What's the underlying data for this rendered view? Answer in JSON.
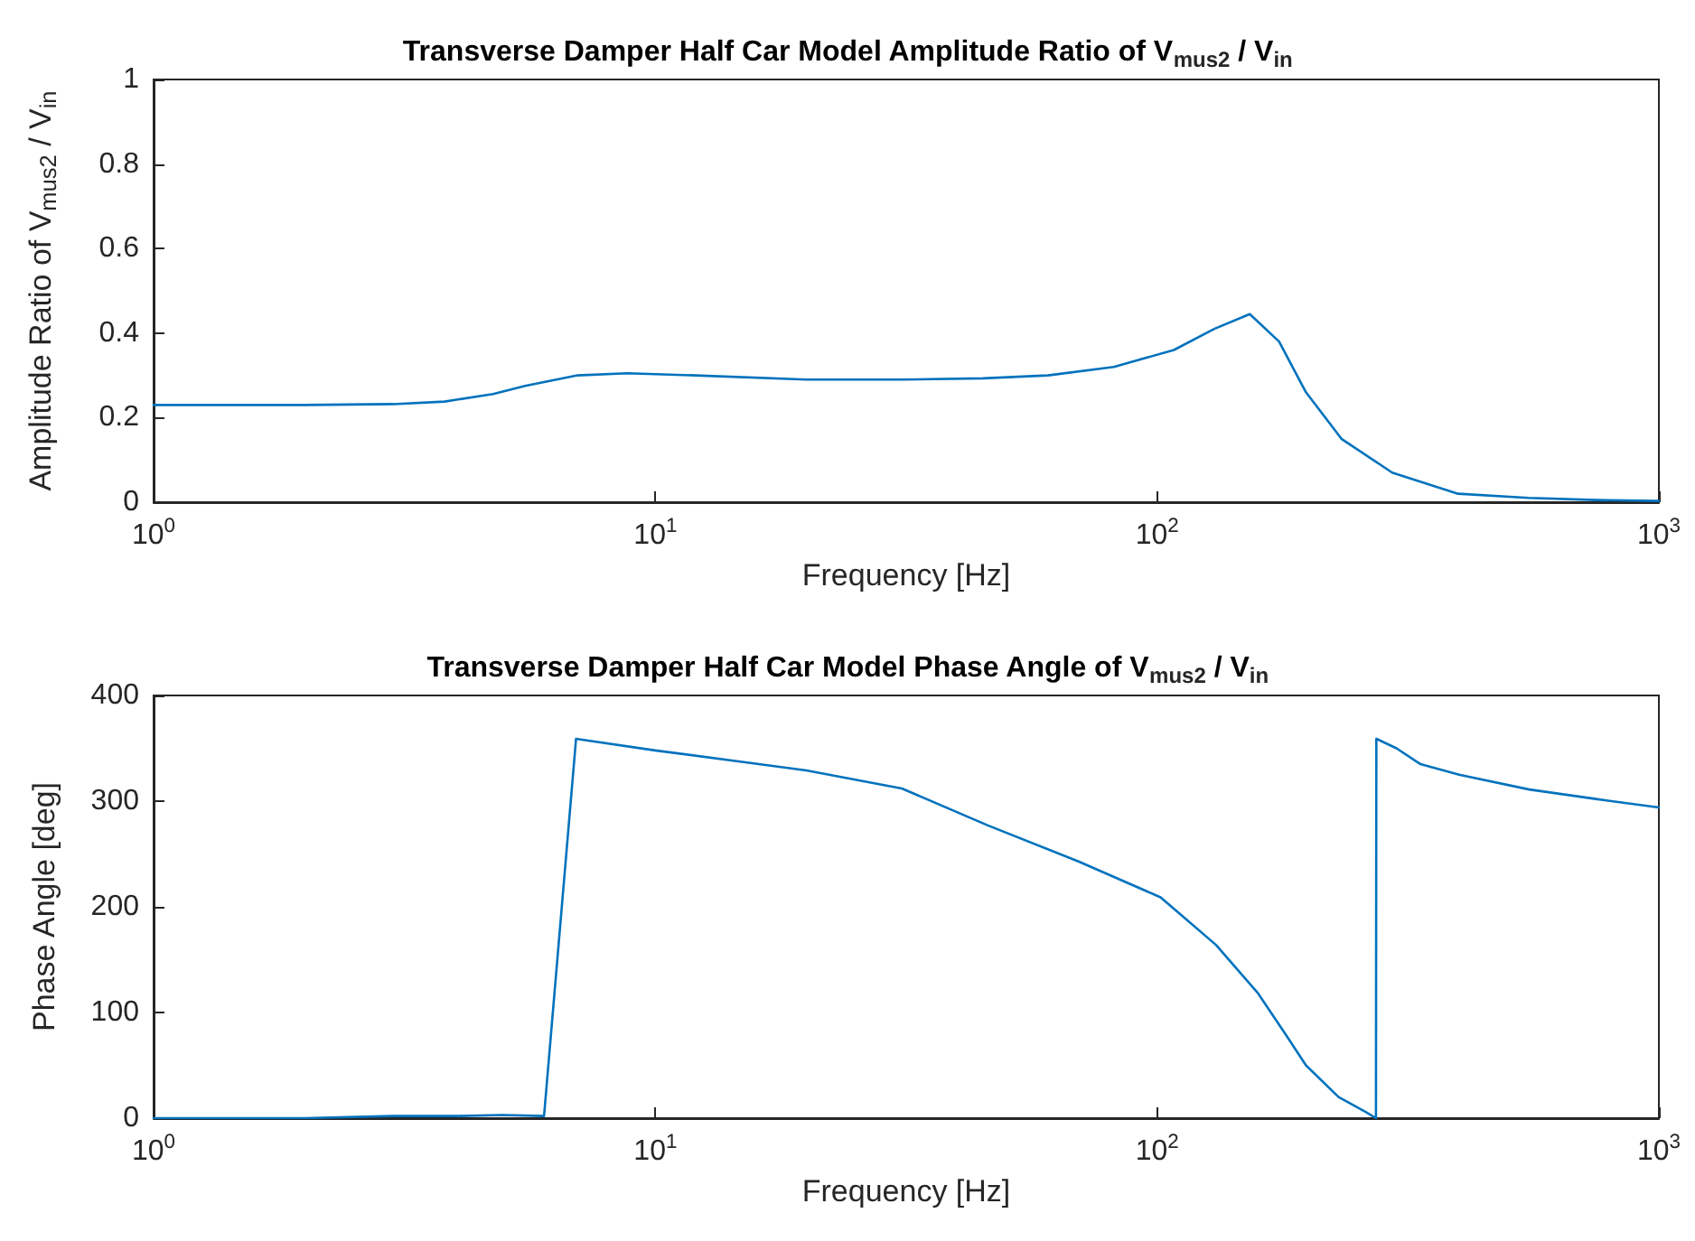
{
  "chart_data": [
    {
      "type": "line",
      "title": "Transverse Damper Half Car Model Amplitude Ratio of V$_{mus2}$ / V$_{in}$",
      "xlabel": "Frequency [Hz]",
      "ylabel": "Amplitude Ratio of V$_{mus2}$ / V$_{in}$",
      "log": "x",
      "grid": false,
      "marker": "none",
      "line_style": "solid",
      "xlim": [
        1,
        1000
      ],
      "xticks": [
        {
          "value": 1,
          "label": "10$^{0}$"
        },
        {
          "value": 10,
          "label": "10$^{1}$"
        },
        {
          "value": 100,
          "label": "10$^{2}$"
        },
        {
          "value": 1000,
          "label": "10$^{3}$"
        }
      ],
      "ylim": [
        0,
        1
      ],
      "yticks": [
        0,
        0.2,
        0.4,
        0.6,
        0.8,
        1
      ],
      "series": [
        {
          "color": "#0072bd",
          "x": [
            1,
            2,
            3,
            3.8,
            4.75,
            5.5,
            7,
            8.8,
            12,
            20,
            31,
            45,
            60.6,
            82,
            108,
            130,
            153,
            175,
            198,
            233,
            294,
            398,
            550,
            750,
            1000
          ],
          "values": [
            0.23,
            0.23,
            0.232,
            0.238,
            0.256,
            0.275,
            0.3,
            0.305,
            0.3,
            0.29,
            0.29,
            0.293,
            0.3,
            0.32,
            0.36,
            0.41,
            0.445,
            0.38,
            0.26,
            0.15,
            0.07,
            0.02,
            0.01,
            0.005,
            0.003
          ]
        }
      ]
    },
    {
      "type": "line",
      "title": "Transverse Damper Half Car Model Phase Angle of V$_{mus2}$ / V$_{in}$",
      "xlabel": "Frequency [Hz]",
      "ylabel": "Phase Angle [deg]",
      "log": "x",
      "grid": false,
      "marker": "none",
      "line_style": "solid",
      "xlim": [
        1,
        1000
      ],
      "xticks": [
        {
          "value": 1,
          "label": "10$^{0}$"
        },
        {
          "value": 10,
          "label": "10$^{1}$"
        },
        {
          "value": 100,
          "label": "10$^{2}$"
        },
        {
          "value": 1000,
          "label": "10$^{3}$"
        }
      ],
      "ylim": [
        0,
        400
      ],
      "yticks": [
        0,
        100,
        200,
        300,
        400
      ],
      "series": [
        {
          "color": "#0072bd",
          "x": [
            1,
            2,
            3,
            4,
            4.95,
            6,
            6.95,
            10,
            15,
            20,
            31,
            46,
            69.7,
            101.6,
            131,
            159,
            180,
            198,
            230,
            260,
            273,
            273.5,
            300,
            335,
            400,
            552,
            750,
            1000
          ],
          "values": [
            0,
            0,
            2,
            2,
            3,
            2,
            359,
            348,
            337,
            329,
            312,
            277,
            243,
            209,
            164,
            118,
            80,
            50,
            20,
            6,
            0,
            359,
            350,
            335,
            325,
            311,
            302,
            294
          ]
        }
      ]
    }
  ]
}
